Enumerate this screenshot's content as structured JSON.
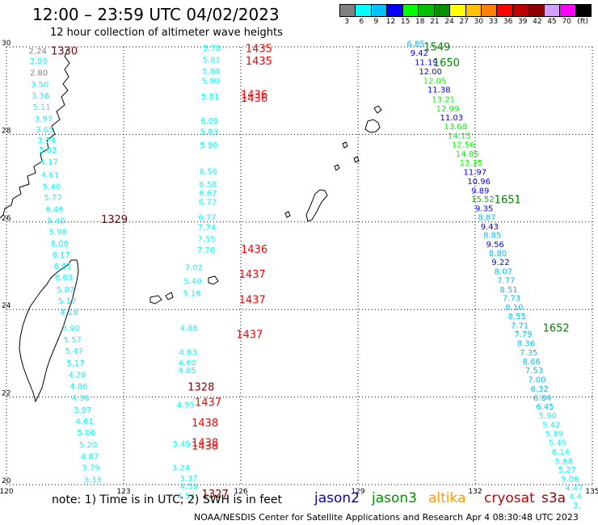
{
  "header": {
    "title": "12:00 – 23:59 UTC 04/02/2023",
    "subtitle": "12 hour collection of altimeter wave heights"
  },
  "color_scale": {
    "labels": [
      "3",
      "6",
      "9",
      "12",
      "15",
      "18",
      "21",
      "24",
      "27",
      "30",
      "33",
      "36",
      "39",
      "42",
      "45",
      "70",
      "(ft)"
    ],
    "colors": [
      "#808080",
      "#00ffff",
      "#00bfff",
      "#0000ff",
      "#00ff00",
      "#00c000",
      "#009000",
      "#ffff00",
      "#ffc000",
      "#ff8000",
      "#ff0000",
      "#c00000",
      "#900000",
      "#d0a0ff",
      "#ff00ff",
      "#000000"
    ]
  },
  "map": {
    "lon_ticks": [
      "120",
      "123",
      "126",
      "129",
      "132",
      "135"
    ],
    "lat_ticks": [
      "30",
      "28",
      "26",
      "24",
      "22",
      "20"
    ],
    "lon_range": [
      120,
      135
    ],
    "lat_range": [
      20,
      30
    ]
  },
  "observations": [
    {
      "v": "2.24",
      "c": "#808080",
      "lon": 120.57,
      "lat": 29.9
    },
    {
      "v": "3.99",
      "c": "#00ffff",
      "lon": 120.59,
      "lat": 29.67
    },
    {
      "v": "2.80",
      "c": "#808080",
      "lon": 120.6,
      "lat": 29.4
    },
    {
      "v": "3.50",
      "c": "#00ffff",
      "lon": 120.62,
      "lat": 29.13
    },
    {
      "v": "3.36",
      "c": "#00ffff",
      "lon": 120.64,
      "lat": 28.87
    },
    {
      "v": "5.11",
      "c": "#00ffff",
      "lon": 120.67,
      "lat": 28.62
    },
    {
      "v": "3.97",
      "c": "#00ffff",
      "lon": 120.72,
      "lat": 28.35
    },
    {
      "v": "3.65",
      "c": "#00ffff",
      "lon": 120.75,
      "lat": 28.1
    },
    {
      "v": "3.74",
      "c": "#00ffff",
      "lon": 120.79,
      "lat": 27.86
    },
    {
      "v": "5.03",
      "c": "#00ffff",
      "lon": 120.83,
      "lat": 27.64
    },
    {
      "v": "4.17",
      "c": "#00ffff",
      "lon": 120.86,
      "lat": 27.36
    },
    {
      "v": "4.61",
      "c": "#00ffff",
      "lon": 120.89,
      "lat": 27.07
    },
    {
      "v": "5.40",
      "c": "#00ffff",
      "lon": 120.93,
      "lat": 26.8
    },
    {
      "v": "5.77",
      "c": "#00ffff",
      "lon": 120.96,
      "lat": 26.55
    },
    {
      "v": "6.46",
      "c": "#00ffff",
      "lon": 121.0,
      "lat": 26.28
    },
    {
      "v": "5.40",
      "c": "#00ffff",
      "lon": 121.04,
      "lat": 26.02
    },
    {
      "v": "5.98",
      "c": "#00ffff",
      "lon": 121.09,
      "lat": 25.77
    },
    {
      "v": "6.06",
      "c": "#00ffff",
      "lon": 121.13,
      "lat": 25.5
    },
    {
      "v": "6.17",
      "c": "#00ffff",
      "lon": 121.17,
      "lat": 25.24
    },
    {
      "v": "6.81",
      "c": "#00ffff",
      "lon": 121.21,
      "lat": 24.98
    },
    {
      "v": "6.69",
      "c": "#00ffff",
      "lon": 121.24,
      "lat": 24.72
    },
    {
      "v": "5.87",
      "c": "#00ffff",
      "lon": 121.28,
      "lat": 24.45
    },
    {
      "v": "5.17",
      "c": "#00ffff",
      "lon": 121.32,
      "lat": 24.19
    },
    {
      "v": "4.18",
      "c": "#00ffff",
      "lon": 121.37,
      "lat": 23.93
    },
    {
      "v": "3.90",
      "c": "#00ffff",
      "lon": 121.42,
      "lat": 23.57
    },
    {
      "v": "5.57",
      "c": "#00ffff",
      "lon": 121.46,
      "lat": 23.3
    },
    {
      "v": "5.47",
      "c": "#00ffff",
      "lon": 121.5,
      "lat": 23.04
    },
    {
      "v": "5.17",
      "c": "#00ffff",
      "lon": 121.54,
      "lat": 22.77
    },
    {
      "v": "4.28",
      "c": "#00ffff",
      "lon": 121.58,
      "lat": 22.5
    },
    {
      "v": "4.86",
      "c": "#00ffff",
      "lon": 121.62,
      "lat": 22.24
    },
    {
      "v": "4.36",
      "c": "#00ffff",
      "lon": 121.67,
      "lat": 21.97
    },
    {
      "v": "3.97",
      "c": "#00ffff",
      "lon": 121.72,
      "lat": 21.7
    },
    {
      "v": "4.61",
      "c": "#00ffff",
      "lon": 121.77,
      "lat": 21.44
    },
    {
      "v": "5.06",
      "c": "#00ffff",
      "lon": 121.81,
      "lat": 21.18
    },
    {
      "v": "5.20",
      "c": "#00ffff",
      "lon": 121.86,
      "lat": 20.9
    },
    {
      "v": "4.87",
      "c": "#00ffff",
      "lon": 121.9,
      "lat": 20.64
    },
    {
      "v": "3.79",
      "c": "#00ffff",
      "lon": 121.93,
      "lat": 20.38
    },
    {
      "v": "3.33",
      "c": "#00ffff",
      "lon": 121.97,
      "lat": 20.1
    },
    {
      "v": "5.78",
      "c": "#00ffff",
      "lon": 125.03,
      "lat": 29.96
    },
    {
      "v": "5.81",
      "c": "#00ffff",
      "lon": 125.02,
      "lat": 29.7
    },
    {
      "v": "5.88",
      "c": "#00ffff",
      "lon": 125.01,
      "lat": 29.44
    },
    {
      "v": "5.90",
      "c": "#00ffff",
      "lon": 125.0,
      "lat": 29.22
    },
    {
      "v": "5.81",
      "c": "#00ffff",
      "lon": 124.99,
      "lat": 28.86
    },
    {
      "v": "6.09",
      "c": "#00ffff",
      "lon": 124.97,
      "lat": 28.3
    },
    {
      "v": "5.83",
      "c": "#00ffff",
      "lon": 124.96,
      "lat": 28.05
    },
    {
      "v": "5.90",
      "c": "#00ffff",
      "lon": 124.95,
      "lat": 27.75
    },
    {
      "v": "6.56",
      "c": "#00ffff",
      "lon": 124.94,
      "lat": 27.15
    },
    {
      "v": "6.58",
      "c": "#00ffff",
      "lon": 124.93,
      "lat": 26.85
    },
    {
      "v": "6.67",
      "c": "#00ffff",
      "lon": 124.93,
      "lat": 26.65
    },
    {
      "v": "6.72",
      "c": "#00ffff",
      "lon": 124.92,
      "lat": 26.45
    },
    {
      "v": "6.77",
      "c": "#00ffff",
      "lon": 124.91,
      "lat": 26.1
    },
    {
      "v": "7.74",
      "c": "#00ffff",
      "lon": 124.9,
      "lat": 25.87
    },
    {
      "v": "7.55",
      "c": "#00ffff",
      "lon": 124.89,
      "lat": 25.6
    },
    {
      "v": "7.76",
      "c": "#00ffff",
      "lon": 124.88,
      "lat": 25.35
    },
    {
      "v": "7.02",
      "c": "#00ffff",
      "lon": 124.57,
      "lat": 24.95
    },
    {
      "v": "5.40",
      "c": "#00ffff",
      "lon": 124.54,
      "lat": 24.64
    },
    {
      "v": "5.16",
      "c": "#00ffff",
      "lon": 124.52,
      "lat": 24.36
    },
    {
      "v": "4.86",
      "c": "#00ffff",
      "lon": 124.44,
      "lat": 23.57
    },
    {
      "v": "4.83",
      "c": "#00ffff",
      "lon": 124.42,
      "lat": 23.02
    },
    {
      "v": "4.60",
      "c": "#00ffff",
      "lon": 124.4,
      "lat": 22.78
    },
    {
      "v": "4.85",
      "c": "#00ffff",
      "lon": 124.39,
      "lat": 22.6
    },
    {
      "v": "4.95",
      "c": "#00ffff",
      "lon": 124.36,
      "lat": 21.82
    },
    {
      "v": "3.49",
      "c": "#00ffff",
      "lon": 124.25,
      "lat": 20.92
    },
    {
      "v": "3.24",
      "c": "#00ffff",
      "lon": 124.24,
      "lat": 20.38
    },
    {
      "v": "3.37",
      "c": "#00ffff",
      "lon": 124.43,
      "lat": 20.14
    },
    {
      "v": "4.59",
      "c": "#00ffff",
      "lon": 124.44,
      "lat": 19.95
    },
    {
      "v": "4.54",
      "c": "#00ffff",
      "lon": 124.37,
      "lat": 19.73
    },
    {
      "v": "6.85",
      "c": "#00bfff",
      "lon": 130.25,
      "lat": 30.06
    },
    {
      "v": "9.42",
      "c": "#0000ff",
      "lon": 130.34,
      "lat": 29.85
    },
    {
      "v": "11.19",
      "c": "#0000ff",
      "lon": 130.45,
      "lat": 29.64
    },
    {
      "v": "12.00",
      "c": "#0000ff",
      "lon": 130.56,
      "lat": 29.43
    },
    {
      "v": "12.05",
      "c": "#00ff00",
      "lon": 130.67,
      "lat": 29.22
    },
    {
      "v": "11.38",
      "c": "#0000ff",
      "lon": 130.78,
      "lat": 29.01
    },
    {
      "v": "13.21",
      "c": "#00ff00",
      "lon": 130.89,
      "lat": 28.79
    },
    {
      "v": "12.99",
      "c": "#00ff00",
      "lon": 131.0,
      "lat": 28.58
    },
    {
      "v": "11.03",
      "c": "#0000ff",
      "lon": 131.1,
      "lat": 28.38
    },
    {
      "v": "13.68",
      "c": "#00ff00",
      "lon": 131.2,
      "lat": 28.17
    },
    {
      "v": "14.15",
      "c": "#00ff00",
      "lon": 131.3,
      "lat": 27.96
    },
    {
      "v": "12.56",
      "c": "#00ff00",
      "lon": 131.4,
      "lat": 27.76
    },
    {
      "v": "14.85",
      "c": "#00ff00",
      "lon": 131.5,
      "lat": 27.55
    },
    {
      "v": "13.35",
      "c": "#00ff00",
      "lon": 131.6,
      "lat": 27.34
    },
    {
      "v": "11.97",
      "c": "#0000ff",
      "lon": 131.7,
      "lat": 27.13
    },
    {
      "v": "10.96",
      "c": "#0000ff",
      "lon": 131.8,
      "lat": 26.92
    },
    {
      "v": "9.89",
      "c": "#0000ff",
      "lon": 131.9,
      "lat": 26.71
    },
    {
      "v": "15.52",
      "c": "#00c000",
      "lon": 131.9,
      "lat": 26.51
    },
    {
      "v": "9.35",
      "c": "#0000ff",
      "lon": 132.0,
      "lat": 26.3
    },
    {
      "v": "8.87",
      "c": "#00bfff",
      "lon": 132.07,
      "lat": 26.1
    },
    {
      "v": "9.43",
      "c": "#0000ff",
      "lon": 132.14,
      "lat": 25.89
    },
    {
      "v": "8.85",
      "c": "#00bfff",
      "lon": 132.21,
      "lat": 25.69
    },
    {
      "v": "9.56",
      "c": "#0000ff",
      "lon": 132.28,
      "lat": 25.48
    },
    {
      "v": "8.80",
      "c": "#00bfff",
      "lon": 132.35,
      "lat": 25.28
    },
    {
      "v": "9.22",
      "c": "#0000ff",
      "lon": 132.42,
      "lat": 25.07
    },
    {
      "v": "8.07",
      "c": "#00bfff",
      "lon": 132.49,
      "lat": 24.86
    },
    {
      "v": "7.77",
      "c": "#00bfff",
      "lon": 132.56,
      "lat": 24.66
    },
    {
      "v": "8.51",
      "c": "#00bfff",
      "lon": 132.63,
      "lat": 24.45
    },
    {
      "v": "7.73",
      "c": "#00bfff",
      "lon": 132.7,
      "lat": 24.25
    },
    {
      "v": "8.10",
      "c": "#00bfff",
      "lon": 132.77,
      "lat": 24.04
    },
    {
      "v": "8.55",
      "c": "#00bfff",
      "lon": 132.84,
      "lat": 23.84
    },
    {
      "v": "7.71",
      "c": "#00bfff",
      "lon": 132.91,
      "lat": 23.63
    },
    {
      "v": "7.79",
      "c": "#00bfff",
      "lon": 133.0,
      "lat": 23.43
    },
    {
      "v": "8.36",
      "c": "#00bfff",
      "lon": 133.07,
      "lat": 23.22
    },
    {
      "v": "7.35",
      "c": "#00bfff",
      "lon": 133.14,
      "lat": 23.01
    },
    {
      "v": "8.66",
      "c": "#00bfff",
      "lon": 133.21,
      "lat": 22.8
    },
    {
      "v": "7.53",
      "c": "#00bfff",
      "lon": 133.28,
      "lat": 22.6
    },
    {
      "v": "7.00",
      "c": "#00bfff",
      "lon": 133.35,
      "lat": 22.39
    },
    {
      "v": "6.32",
      "c": "#00bfff",
      "lon": 133.42,
      "lat": 22.18
    },
    {
      "v": "6.84",
      "c": "#00bfff",
      "lon": 133.49,
      "lat": 21.97
    },
    {
      "v": "6.45",
      "c": "#00bfff",
      "lon": 133.56,
      "lat": 21.77
    },
    {
      "v": "5.90",
      "c": "#00ffff",
      "lon": 133.63,
      "lat": 21.57
    },
    {
      "v": "5.42",
      "c": "#00ffff",
      "lon": 133.72,
      "lat": 21.36
    },
    {
      "v": "5.89",
      "c": "#00ffff",
      "lon": 133.8,
      "lat": 21.15
    },
    {
      "v": "5.45",
      "c": "#00ffff",
      "lon": 133.88,
      "lat": 20.95
    },
    {
      "v": "6.14",
      "c": "#00ffff",
      "lon": 133.96,
      "lat": 20.74
    },
    {
      "v": "5.68",
      "c": "#00ffff",
      "lon": 134.04,
      "lat": 20.53
    },
    {
      "v": "5.27",
      "c": "#00ffff",
      "lon": 134.12,
      "lat": 20.33
    },
    {
      "v": "5.06",
      "c": "#00ffff",
      "lon": 134.2,
      "lat": 20.12
    },
    {
      "v": "4.47",
      "c": "#00ffff",
      "lon": 134.3,
      "lat": 19.92
    },
    {
      "v": "4.4",
      "c": "#00ffff",
      "lon": 134.4,
      "lat": 19.72
    },
    {
      "v": "3.",
      "c": "#00ffff",
      "lon": 134.5,
      "lat": 19.52
    }
  ],
  "pass_times": [
    {
      "t": "1330",
      "c": "#800000",
      "lon": 121.14,
      "lat": 29.9
    },
    {
      "t": "1435",
      "c": "#ff0000",
      "lon": 126.12,
      "lat": 29.95
    },
    {
      "t": "1435",
      "c": "#ff0000",
      "lon": 126.12,
      "lat": 29.67
    },
    {
      "t": "1436",
      "c": "#ff0000",
      "lon": 126.0,
      "lat": 28.9
    },
    {
      "t": "1436",
      "c": "#ff0000",
      "lon": 126.0,
      "lat": 28.82
    },
    {
      "t": "1329",
      "c": "#800000",
      "lon": 122.42,
      "lat": 26.05
    },
    {
      "t": "1436",
      "c": "#ff0000",
      "lon": 126.0,
      "lat": 25.37
    },
    {
      "t": "1437",
      "c": "#ff0000",
      "lon": 125.95,
      "lat": 24.8
    },
    {
      "t": "1437",
      "c": "#ff0000",
      "lon": 125.95,
      "lat": 24.22
    },
    {
      "t": "1437",
      "c": "#ff0000",
      "lon": 125.88,
      "lat": 23.42
    },
    {
      "t": "1328",
      "c": "#800000",
      "lon": 124.64,
      "lat": 22.22
    },
    {
      "t": "1437",
      "c": "#ff0000",
      "lon": 124.82,
      "lat": 21.87
    },
    {
      "t": "1438",
      "c": "#ff0000",
      "lon": 124.74,
      "lat": 21.4
    },
    {
      "t": "1438",
      "c": "#ff0000",
      "lon": 124.74,
      "lat": 20.95
    },
    {
      "t": "1438",
      "c": "#ff0000",
      "lon": 124.74,
      "lat": 20.88
    },
    {
      "t": "1327",
      "c": "#800000",
      "lon": 125.0,
      "lat": 19.78
    },
    {
      "t": "1549",
      "c": "#008000",
      "lon": 130.68,
      "lat": 29.99
    },
    {
      "t": "1650",
      "c": "#008000",
      "lon": 130.92,
      "lat": 29.63
    },
    {
      "t": "1651",
      "c": "#008000",
      "lon": 132.49,
      "lat": 26.5
    },
    {
      "t": "1652",
      "c": "#008000",
      "lon": 133.73,
      "lat": 23.57
    }
  ],
  "footer": {
    "note": "note: 1) Time is in UTC; 2) SWH is in feet",
    "missions": [
      {
        "label": "jason2",
        "color": "#0000cc"
      },
      {
        "label": "jason3",
        "color": "#009000"
      },
      {
        "label": "altika",
        "color": "#ff9900"
      },
      {
        "label": "cryosat",
        "color": "#cc0000"
      },
      {
        "label": "s3a",
        "color": "#990000"
      }
    ],
    "credit": "NOAA/NESDIS Center for Satellite Applications and Research    Apr  4 08:30:48 UTC 2023"
  }
}
